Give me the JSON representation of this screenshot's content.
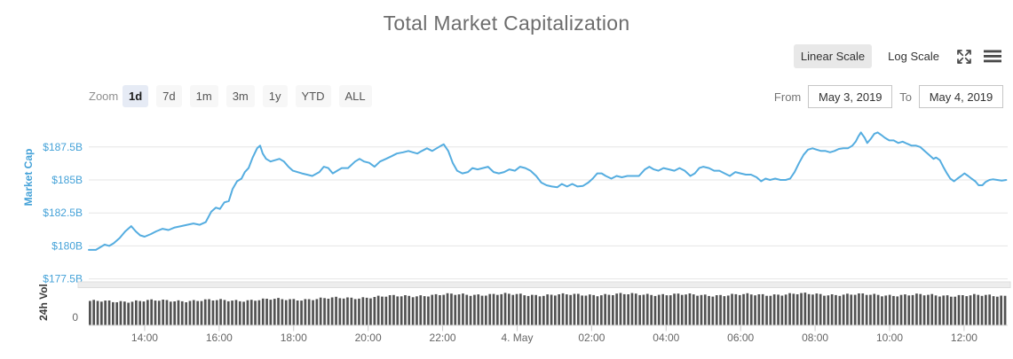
{
  "title": "Total Market Capitalization",
  "controls": {
    "linear_scale_label": "Linear Scale",
    "log_scale_label": "Log Scale"
  },
  "range_selector": {
    "zoom_label": "Zoom",
    "buttons": [
      {
        "label": "1d",
        "selected": true
      },
      {
        "label": "7d",
        "selected": false
      },
      {
        "label": "1m",
        "selected": false
      },
      {
        "label": "3m",
        "selected": false
      },
      {
        "label": "1y",
        "selected": false
      },
      {
        "label": "YTD",
        "selected": false
      },
      {
        "label": "ALL",
        "selected": false
      }
    ],
    "from_label": "From",
    "from_value": "May 3, 2019",
    "to_label": "To",
    "to_value": "May 4, 2019"
  },
  "chart_data": {
    "type": "mixed",
    "title": "Total Market Capitalization",
    "window_hours": 24.67,
    "grid_color": "#e6e6e6",
    "x_axis": {
      "label_color": "#666666",
      "ticks": [
        {
          "t": 1.5,
          "label": "14:00"
        },
        {
          "t": 3.5,
          "label": "16:00"
        },
        {
          "t": 5.5,
          "label": "18:00"
        },
        {
          "t": 7.5,
          "label": "20:00"
        },
        {
          "t": 9.5,
          "label": "22:00"
        },
        {
          "t": 11.5,
          "label": "4. May"
        },
        {
          "t": 13.5,
          "label": "02:00"
        },
        {
          "t": 15.5,
          "label": "04:00"
        },
        {
          "t": 17.5,
          "label": "06:00"
        },
        {
          "t": 19.5,
          "label": "08:00"
        },
        {
          "t": 21.5,
          "label": "10:00"
        },
        {
          "t": 23.5,
          "label": "12:00"
        }
      ]
    },
    "market_cap": {
      "type": "line",
      "axis_title": "Market Cap",
      "unit": "USD billions",
      "x_unit": "hours from window start",
      "color": "#55ade0",
      "axis_color": "#45a2d8",
      "ylim": [
        177.2,
        189.9
      ],
      "ytick_labels": [
        "$187.5B",
        "$185B",
        "$182.5B",
        "$180B",
        "$177.5B"
      ],
      "ytick_values": [
        187.5,
        185,
        182.5,
        180,
        177.5
      ],
      "points": [
        [
          0.0,
          179.7
        ],
        [
          0.19,
          179.7
        ],
        [
          0.31,
          179.9
        ],
        [
          0.43,
          180.1
        ],
        [
          0.55,
          180.0
        ],
        [
          0.67,
          180.2
        ],
        [
          0.83,
          180.6
        ],
        [
          0.98,
          181.1
        ],
        [
          1.14,
          181.5
        ],
        [
          1.26,
          181.1
        ],
        [
          1.38,
          180.8
        ],
        [
          1.5,
          180.7
        ],
        [
          1.67,
          180.9
        ],
        [
          1.81,
          181.1
        ],
        [
          1.98,
          181.3
        ],
        [
          2.14,
          181.2
        ],
        [
          2.31,
          181.4
        ],
        [
          2.48,
          181.5
        ],
        [
          2.64,
          181.6
        ],
        [
          2.81,
          181.7
        ],
        [
          2.98,
          181.6
        ],
        [
          3.14,
          181.8
        ],
        [
          3.29,
          182.6
        ],
        [
          3.41,
          182.9
        ],
        [
          3.52,
          182.8
        ],
        [
          3.64,
          183.3
        ],
        [
          3.76,
          183.4
        ],
        [
          3.86,
          184.3
        ],
        [
          3.98,
          184.9
        ],
        [
          4.1,
          185.1
        ],
        [
          4.19,
          185.6
        ],
        [
          4.29,
          185.9
        ],
        [
          4.4,
          186.7
        ],
        [
          4.52,
          187.4
        ],
        [
          4.6,
          187.6
        ],
        [
          4.67,
          187.0
        ],
        [
          4.76,
          186.6
        ],
        [
          4.88,
          186.4
        ],
        [
          5.0,
          186.5
        ],
        [
          5.12,
          186.6
        ],
        [
          5.24,
          186.4
        ],
        [
          5.36,
          186.0
        ],
        [
          5.48,
          185.7
        ],
        [
          5.6,
          185.6
        ],
        [
          5.72,
          185.5
        ],
        [
          5.86,
          185.4
        ],
        [
          6.0,
          185.3
        ],
        [
          6.19,
          185.6
        ],
        [
          6.31,
          186.0
        ],
        [
          6.43,
          185.9
        ],
        [
          6.55,
          185.5
        ],
        [
          6.67,
          185.7
        ],
        [
          6.79,
          185.9
        ],
        [
          6.96,
          185.9
        ],
        [
          7.15,
          186.4
        ],
        [
          7.27,
          186.6
        ],
        [
          7.39,
          186.4
        ],
        [
          7.53,
          186.3
        ],
        [
          7.67,
          186.0
        ],
        [
          7.82,
          186.4
        ],
        [
          7.98,
          186.6
        ],
        [
          8.13,
          186.8
        ],
        [
          8.27,
          187.0
        ],
        [
          8.44,
          187.1
        ],
        [
          8.58,
          187.2
        ],
        [
          8.7,
          187.1
        ],
        [
          8.82,
          187.0
        ],
        [
          8.94,
          187.2
        ],
        [
          9.08,
          187.4
        ],
        [
          9.22,
          187.2
        ],
        [
          9.34,
          187.4
        ],
        [
          9.46,
          187.6
        ],
        [
          9.53,
          187.7
        ],
        [
          9.65,
          187.2
        ],
        [
          9.77,
          186.3
        ],
        [
          9.89,
          185.7
        ],
        [
          10.03,
          185.5
        ],
        [
          10.18,
          185.6
        ],
        [
          10.3,
          185.9
        ],
        [
          10.44,
          185.8
        ],
        [
          10.58,
          185.9
        ],
        [
          10.72,
          186.0
        ],
        [
          10.87,
          185.6
        ],
        [
          11.01,
          185.5
        ],
        [
          11.15,
          185.6
        ],
        [
          11.29,
          185.8
        ],
        [
          11.44,
          185.7
        ],
        [
          11.58,
          186.0
        ],
        [
          11.72,
          185.9
        ],
        [
          11.86,
          185.7
        ],
        [
          12.01,
          185.3
        ],
        [
          12.15,
          184.8
        ],
        [
          12.29,
          184.6
        ],
        [
          12.43,
          184.5
        ],
        [
          12.58,
          184.45
        ],
        [
          12.7,
          184.7
        ],
        [
          12.84,
          184.5
        ],
        [
          12.98,
          184.7
        ],
        [
          13.12,
          184.5
        ],
        [
          13.27,
          184.55
        ],
        [
          13.41,
          184.8
        ],
        [
          13.53,
          185.1
        ],
        [
          13.65,
          185.5
        ],
        [
          13.77,
          185.5
        ],
        [
          13.88,
          185.3
        ],
        [
          14.03,
          185.1
        ],
        [
          14.17,
          185.3
        ],
        [
          14.31,
          185.2
        ],
        [
          14.46,
          185.3
        ],
        [
          14.6,
          185.3
        ],
        [
          14.77,
          185.3
        ],
        [
          14.93,
          185.8
        ],
        [
          15.05,
          186.0
        ],
        [
          15.17,
          185.8
        ],
        [
          15.29,
          185.7
        ],
        [
          15.43,
          185.9
        ],
        [
          15.58,
          185.8
        ],
        [
          15.72,
          185.7
        ],
        [
          15.86,
          185.9
        ],
        [
          16.0,
          185.7
        ],
        [
          16.15,
          185.3
        ],
        [
          16.27,
          185.5
        ],
        [
          16.39,
          185.9
        ],
        [
          16.5,
          186.0
        ],
        [
          16.65,
          185.9
        ],
        [
          16.79,
          185.7
        ],
        [
          16.93,
          185.7
        ],
        [
          17.07,
          185.5
        ],
        [
          17.21,
          185.3
        ],
        [
          17.36,
          185.6
        ],
        [
          17.5,
          185.5
        ],
        [
          17.64,
          185.4
        ],
        [
          17.78,
          185.4
        ],
        [
          17.93,
          185.2
        ],
        [
          18.05,
          184.9
        ],
        [
          18.17,
          185.1
        ],
        [
          18.29,
          185.0
        ],
        [
          18.43,
          185.1
        ],
        [
          18.57,
          185.0
        ],
        [
          18.71,
          185.0
        ],
        [
          18.83,
          185.1
        ],
        [
          18.95,
          185.6
        ],
        [
          19.07,
          186.3
        ],
        [
          19.19,
          186.9
        ],
        [
          19.31,
          187.3
        ],
        [
          19.43,
          187.4
        ],
        [
          19.54,
          187.3
        ],
        [
          19.66,
          187.2
        ],
        [
          19.78,
          187.2
        ],
        [
          19.9,
          187.1
        ],
        [
          20.02,
          187.2
        ],
        [
          20.14,
          187.35
        ],
        [
          20.26,
          187.4
        ],
        [
          20.38,
          187.4
        ],
        [
          20.5,
          187.6
        ],
        [
          20.59,
          187.9
        ],
        [
          20.66,
          188.3
        ],
        [
          20.73,
          188.6
        ],
        [
          20.83,
          188.2
        ],
        [
          20.9,
          187.8
        ],
        [
          20.99,
          188.1
        ],
        [
          21.09,
          188.5
        ],
        [
          21.18,
          188.6
        ],
        [
          21.28,
          188.4
        ],
        [
          21.37,
          188.2
        ],
        [
          21.49,
          188.0
        ],
        [
          21.61,
          188.0
        ],
        [
          21.73,
          187.8
        ],
        [
          21.85,
          187.9
        ],
        [
          21.97,
          187.75
        ],
        [
          22.09,
          187.6
        ],
        [
          22.21,
          187.6
        ],
        [
          22.32,
          187.5
        ],
        [
          22.44,
          187.2
        ],
        [
          22.56,
          186.9
        ],
        [
          22.68,
          186.6
        ],
        [
          22.75,
          186.7
        ],
        [
          22.85,
          186.5
        ],
        [
          22.94,
          186.0
        ],
        [
          23.04,
          185.5
        ],
        [
          23.13,
          185.1
        ],
        [
          23.23,
          184.9
        ],
        [
          23.32,
          185.1
        ],
        [
          23.42,
          185.3
        ],
        [
          23.51,
          185.5
        ],
        [
          23.61,
          185.3
        ],
        [
          23.7,
          185.1
        ],
        [
          23.8,
          184.9
        ],
        [
          23.89,
          184.6
        ],
        [
          23.99,
          184.6
        ],
        [
          24.08,
          184.85
        ],
        [
          24.18,
          185.0
        ],
        [
          24.27,
          185.05
        ],
        [
          24.39,
          185.0
        ],
        [
          24.51,
          184.95
        ],
        [
          24.63,
          185.0
        ]
      ]
    },
    "volume": {
      "type": "bar",
      "axis_title": "24h Vol",
      "ytick_labels": [
        "0"
      ],
      "bar_color": "#525252",
      "bar_count": 239,
      "hourly_relative_heights": [
        0.56,
        0.57,
        0.58,
        0.585,
        0.59,
        0.61,
        0.62,
        0.65,
        0.68,
        0.71,
        0.73,
        0.73,
        0.72,
        0.72,
        0.73,
        0.735,
        0.72,
        0.715,
        0.725,
        0.74,
        0.73,
        0.72,
        0.715,
        0.71,
        0.7
      ]
    }
  }
}
